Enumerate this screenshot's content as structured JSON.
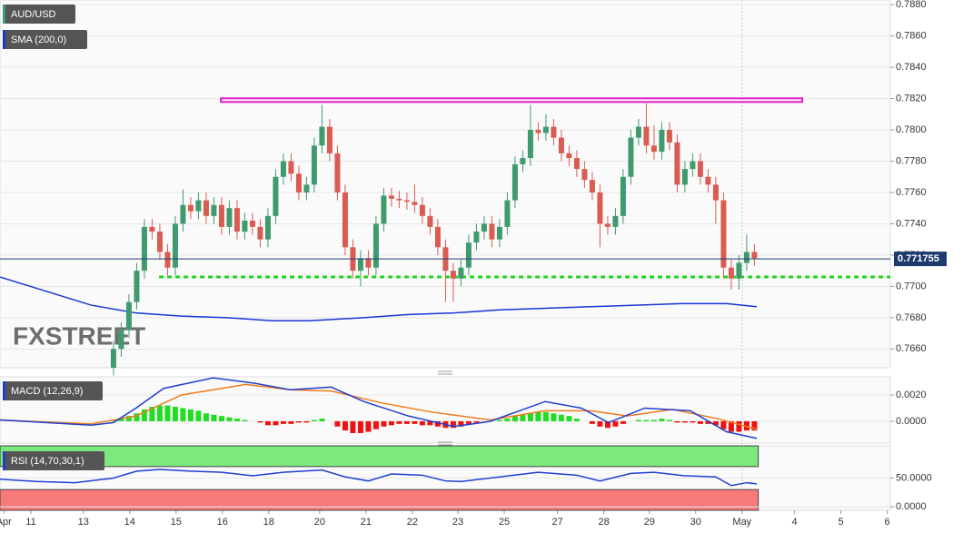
{
  "chart_data": [
    {
      "type": "candlestick",
      "series_label": "AUD/USD",
      "indicator_label": "SMA (200,0)",
      "watermark": "FXSTREET",
      "open": [
        0.7648,
        0.766,
        0.7672,
        0.769,
        0.771,
        0.7738,
        0.7735,
        0.7722,
        0.7712,
        0.774,
        0.7752,
        0.7748,
        0.7755,
        0.7745,
        0.7752,
        0.7738,
        0.775,
        0.7735,
        0.7742,
        0.7738,
        0.773,
        0.7745,
        0.777,
        0.778,
        0.7772,
        0.776,
        0.7765,
        0.779,
        0.7802,
        0.7785,
        0.776,
        0.7725,
        0.771,
        0.7718,
        0.7712,
        0.774,
        0.7758,
        0.7756,
        0.7755,
        0.7754,
        0.7752,
        0.7745,
        0.7738,
        0.7725,
        0.771,
        0.7705,
        0.7712,
        0.7728,
        0.7735,
        0.774,
        0.773,
        0.7738,
        0.7755,
        0.7778,
        0.7782,
        0.78,
        0.7798,
        0.7802,
        0.7795,
        0.7785,
        0.7782,
        0.7775,
        0.7768,
        0.776,
        0.774,
        0.7738,
        0.7745,
        0.777,
        0.7795,
        0.7802,
        0.779,
        0.7786,
        0.78,
        0.7792,
        0.7765,
        0.7775,
        0.778,
        0.777,
        0.7765,
        0.7755,
        0.7712,
        0.7705,
        0.7715,
        0.7722
      ],
      "high": [
        0.7665,
        0.7677,
        0.7695,
        0.7715,
        0.7743,
        0.7743,
        0.774,
        0.7727,
        0.7745,
        0.7762,
        0.7757,
        0.776,
        0.776,
        0.7757,
        0.7757,
        0.7755,
        0.7755,
        0.7747,
        0.7747,
        0.7743,
        0.775,
        0.7775,
        0.7785,
        0.7785,
        0.7777,
        0.777,
        0.7795,
        0.7816,
        0.7807,
        0.779,
        0.7765,
        0.773,
        0.7723,
        0.7723,
        0.7745,
        0.7763,
        0.7763,
        0.7761,
        0.776,
        0.7765,
        0.7757,
        0.775,
        0.7743,
        0.773,
        0.7715,
        0.7717,
        0.7733,
        0.774,
        0.7745,
        0.7745,
        0.7743,
        0.776,
        0.7783,
        0.7787,
        0.7816,
        0.7805,
        0.781,
        0.7807,
        0.78,
        0.779,
        0.7787,
        0.778,
        0.7773,
        0.7765,
        0.7745,
        0.775,
        0.7775,
        0.78,
        0.7807,
        0.7817,
        0.7803,
        0.7805,
        0.7805,
        0.7797,
        0.778,
        0.7785,
        0.7785,
        0.7775,
        0.777,
        0.776,
        0.7717,
        0.772,
        0.7733,
        0.7727
      ],
      "low": [
        0.7643,
        0.7655,
        0.7667,
        0.7685,
        0.7705,
        0.773,
        0.7717,
        0.7707,
        0.7707,
        0.7735,
        0.7743,
        0.7743,
        0.774,
        0.774,
        0.7733,
        0.7733,
        0.773,
        0.773,
        0.7733,
        0.7725,
        0.7725,
        0.774,
        0.7765,
        0.7767,
        0.7755,
        0.7755,
        0.776,
        0.7785,
        0.778,
        0.7755,
        0.772,
        0.7705,
        0.77,
        0.7707,
        0.7707,
        0.7735,
        0.7751,
        0.775,
        0.7749,
        0.7747,
        0.774,
        0.7733,
        0.772,
        0.769,
        0.769,
        0.77,
        0.7707,
        0.7723,
        0.773,
        0.7725,
        0.7725,
        0.7733,
        0.775,
        0.7773,
        0.7777,
        0.7793,
        0.7793,
        0.779,
        0.778,
        0.7777,
        0.777,
        0.7763,
        0.7755,
        0.7725,
        0.7733,
        0.7733,
        0.774,
        0.7765,
        0.779,
        0.7785,
        0.7781,
        0.7781,
        0.7787,
        0.776,
        0.776,
        0.777,
        0.7765,
        0.776,
        0.774,
        0.7705,
        0.7698,
        0.7698,
        0.771,
        0.7713
      ],
      "close": [
        0.766,
        0.7672,
        0.769,
        0.771,
        0.7738,
        0.7735,
        0.7722,
        0.7712,
        0.774,
        0.7752,
        0.7748,
        0.7755,
        0.7745,
        0.7752,
        0.7738,
        0.775,
        0.7735,
        0.7742,
        0.7738,
        0.773,
        0.7745,
        0.777,
        0.778,
        0.7772,
        0.776,
        0.7765,
        0.779,
        0.7802,
        0.7785,
        0.776,
        0.7725,
        0.771,
        0.7718,
        0.7712,
        0.774,
        0.7758,
        0.7756,
        0.7755,
        0.7754,
        0.7752,
        0.7745,
        0.7738,
        0.7725,
        0.771,
        0.7705,
        0.7712,
        0.7728,
        0.7735,
        0.774,
        0.773,
        0.7738,
        0.7755,
        0.7778,
        0.7782,
        0.78,
        0.7798,
        0.7802,
        0.7795,
        0.7785,
        0.7782,
        0.7775,
        0.7768,
        0.776,
        0.774,
        0.7738,
        0.7745,
        0.777,
        0.7795,
        0.7802,
        0.779,
        0.7786,
        0.78,
        0.7792,
        0.7765,
        0.7775,
        0.778,
        0.777,
        0.7765,
        0.7755,
        0.7712,
        0.7705,
        0.7715,
        0.7722,
        0.7718
      ],
      "up_color": "#3f9b6e",
      "down_color": "#d95c52",
      "sma": {
        "x": [
          -14.7,
          -8.8,
          -2.9,
          2.9,
          8.8,
          14.7,
          20.6,
          25.3,
          32.4,
          38.2,
          44.1,
          50,
          55.9,
          61.8,
          67.6,
          73.5,
          79.4,
          83.3
        ],
        "values": [
          0.7706,
          0.7697,
          0.7688,
          0.7683,
          0.7681,
          0.768,
          0.7678,
          0.7678,
          0.768,
          0.7682,
          0.7683,
          0.7685,
          0.7686,
          0.7687,
          0.7688,
          0.7689,
          0.7689,
          0.7687
        ],
        "color": "#1736d8"
      },
      "lines": [
        {
          "y": 0.7819,
          "x": [
            13.9,
            89.2
          ],
          "color": "#e01fc4",
          "style": "box"
        },
        {
          "y": 0.7706,
          "x": [
            5.9,
            100.6
          ],
          "color": "#1ed41e",
          "style": "dotted"
        }
      ],
      "last_price": 0.771755,
      "last_price_color": "#1d3a6d",
      "xlim": [
        -14.7,
        100.6
      ],
      "ylim": [
        0.7648,
        0.7883
      ],
      "yticks": [
        {
          "value": 0.788,
          "label": "0.7880"
        },
        {
          "value": 0.786,
          "label": "0.7860"
        },
        {
          "value": 0.784,
          "label": "0.7840"
        },
        {
          "value": 0.782,
          "label": "0.7820"
        },
        {
          "value": 0.78,
          "label": "0.7800"
        },
        {
          "value": 0.778,
          "label": "0.7780"
        },
        {
          "value": 0.776,
          "label": "0.7760"
        },
        {
          "value": 0.774,
          "label": "0.7740"
        },
        {
          "value": 0.772,
          "label": "0.7720"
        },
        {
          "value": 0.77,
          "label": "0.7700"
        },
        {
          "value": 0.768,
          "label": "0.7680"
        },
        {
          "value": 0.766,
          "label": "0.7660"
        }
      ],
      "xticks": [
        {
          "value": -14.2,
          "label": "Apr"
        },
        {
          "value": -10.7,
          "label": "11"
        },
        {
          "value": -3.9,
          "label": "13"
        },
        {
          "value": 2.1,
          "label": "14"
        },
        {
          "value": 8.1,
          "label": "15"
        },
        {
          "value": 14.1,
          "label": "16"
        },
        {
          "value": 20.1,
          "label": "18"
        },
        {
          "value": 26.7,
          "label": "20"
        },
        {
          "value": 32.7,
          "label": "21"
        },
        {
          "value": 38.7,
          "label": "22"
        },
        {
          "value": 44.6,
          "label": "23"
        },
        {
          "value": 50.6,
          "label": "25"
        },
        {
          "value": 57.5,
          "label": "27"
        },
        {
          "value": 63.5,
          "label": "28"
        },
        {
          "value": 69.4,
          "label": "29"
        },
        {
          "value": 75.4,
          "label": "30"
        },
        {
          "value": 81.4,
          "label": "May"
        },
        {
          "value": 88.2,
          "label": "4"
        },
        {
          "value": 94.2,
          "label": "5"
        },
        {
          "value": 100.2,
          "label": "6"
        }
      ],
      "grid": true
    },
    {
      "type": "macd",
      "label": "MACD (12,26,9)",
      "histogram": [
        0.0001,
        0.0002,
        0.0004,
        0.0006,
        0.0009,
        0.0011,
        0.0012,
        0.0012,
        0.0011,
        0.001,
        0.0009,
        0.0008,
        0.0006,
        0.0005,
        0.0004,
        0.0003,
        0.0002,
        0.0001,
        0,
        -0.0001,
        -0.0003,
        -0.0003,
        -0.0002,
        -0.0002,
        -0.0001,
        -0.0001,
        0.0001,
        0.0002,
        0,
        -0.0004,
        -0.0007,
        -0.0009,
        -0.0009,
        -0.0008,
        -0.0006,
        -0.0004,
        -0.0003,
        -0.0002,
        -0.0002,
        -0.0002,
        -0.0003,
        -0.0003,
        -0.0004,
        -0.0005,
        -0.0005,
        -0.0004,
        -0.0002,
        -0.0001,
        0,
        0,
        0.0001,
        0.0002,
        0.0004,
        0.0005,
        0.0006,
        0.0007,
        0.0007,
        0.0006,
        0.0005,
        0.0004,
        0.0002,
        0,
        -0.0002,
        -0.0004,
        -0.0005,
        -0.0004,
        -0.0002,
        0,
        0.0001,
        0.0001,
        0.0001,
        0.0002,
        0.0001,
        -0.0001,
        -0.0001,
        -0.0001,
        -0.0002,
        -0.0002,
        -0.0003,
        -0.0006,
        -0.0008,
        -0.0008,
        -0.0007,
        -0.0007
      ],
      "up_color": "#22dd22",
      "down_color": "#ee1111",
      "macd": {
        "x": [
          -14.7,
          -2.9,
          0,
          2.9,
          6.5,
          12.9,
          18.2,
          22.9,
          28.2,
          32.4,
          38.2,
          44.1,
          48.8,
          55.9,
          60.6,
          64.1,
          68.8,
          74.7,
          79.4,
          83.3
        ],
        "values": [
          0.0001,
          -0.0003,
          -0.0001,
          0.001,
          0.0025,
          0.0033,
          0.0029,
          0.0024,
          0.0026,
          0.0015,
          0.0004,
          -0.0004,
          0,
          0.0015,
          0.001,
          -0.0001,
          0.001,
          0.0008,
          -0.0008,
          -0.0013
        ],
        "color": "#1f3fd0"
      },
      "signal": {
        "x": [
          -14.7,
          -2.9,
          2.9,
          8.8,
          17.1,
          22.9,
          28.2,
          34.7,
          41.2,
          48.8,
          55.9,
          61.8,
          66.5,
          72.4,
          78.2,
          83.3
        ],
        "values": [
          0.0001,
          -0.0002,
          0.0004,
          0.002,
          0.0028,
          0.0024,
          0.0023,
          0.0014,
          0.0007,
          0.0001,
          0.0008,
          0.0008,
          0.0004,
          0.0009,
          0.0002,
          -0.0006
        ],
        "color": "#f07a1a"
      },
      "xlim": [
        -14.7,
        100.6
      ],
      "ylim": [
        -0.00166,
        0.00338
      ],
      "yticks": [
        {
          "value": 0.002,
          "label": "0.0020"
        },
        {
          "value": 0,
          "label": "0.0000"
        }
      ]
    },
    {
      "type": "rsi",
      "label": "RSI (14,70,30,1)",
      "overbought": 70,
      "oversold": 30,
      "overbought_color": "#7de87d",
      "oversold_color": "#f77a7a",
      "line": {
        "x": [
          -14.7,
          -10,
          -5,
          0,
          3,
          6,
          10,
          14,
          18,
          22,
          27,
          30,
          33,
          36,
          40,
          43,
          45,
          50,
          55,
          60,
          63,
          67,
          70,
          74,
          78,
          80,
          82,
          83.3
        ],
        "values": [
          48,
          44,
          42,
          50,
          62,
          65,
          62,
          60,
          54,
          60,
          64,
          52,
          45,
          57,
          55,
          45,
          44,
          52,
          60,
          55,
          45,
          58,
          60,
          54,
          52,
          37,
          42,
          40
        ],
        "color": "#1f3fd0"
      },
      "xlim": [
        -14.7,
        100.6
      ],
      "ylim": [
        -6,
        106
      ],
      "yticks": [
        {
          "value": 50,
          "label": "50.0000"
        },
        {
          "value": 0,
          "label": "0.0000"
        }
      ]
    }
  ]
}
